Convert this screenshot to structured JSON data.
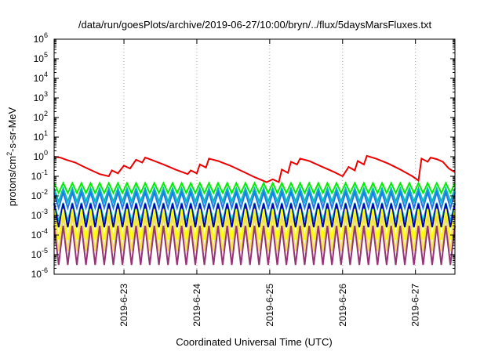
{
  "chart_data": {
    "type": "line",
    "title": "/data/run/goesPlots/archive/2019-06-27/10:00/bryn/../flux/5daysMarsFluxes.txt",
    "xlabel": "Coordinated Universal Time (UTC)",
    "ylabel": {
      "pre": "protons/cm",
      "sup": "2",
      "post": "-s-sr-MeV"
    },
    "x_scale": "time",
    "x_range": [
      "2019-06-22T01:00",
      "2019-06-27T13:00"
    ],
    "x_ticks": [
      "2019-6-23",
      "2019-6-24",
      "2019-6-25",
      "2019-6-26",
      "2019-6-27"
    ],
    "y_scale": "log",
    "y_range": [
      1e-06,
      1000000.0
    ],
    "y_ticks": [
      {
        "base": "10",
        "exp": "-6"
      },
      {
        "base": "10",
        "exp": "-5"
      },
      {
        "base": "10",
        "exp": "-4"
      },
      {
        "base": "10",
        "exp": "-3"
      },
      {
        "base": "10",
        "exp": "-2"
      },
      {
        "base": "10",
        "exp": "-1"
      },
      {
        "base": "10",
        "exp": "0"
      },
      {
        "base": "10",
        "exp": "1"
      },
      {
        "base": "10",
        "exp": "2"
      },
      {
        "base": "10",
        "exp": "3"
      },
      {
        "base": "10",
        "exp": "4"
      },
      {
        "base": "10",
        "exp": "5"
      },
      {
        "base": "10",
        "exp": "6"
      }
    ],
    "grid": "dotted vertical lines at x ticks",
    "legend": "none",
    "series": [
      {
        "color": "#ee0000",
        "values": [
          [
            "2019-06-22T01:00",
            1.0
          ],
          [
            "2019-06-22T03:00",
            0.9
          ],
          [
            "2019-06-22T05:00",
            0.7
          ],
          [
            "2019-06-22T08:00",
            0.5
          ],
          [
            "2019-06-22T10:00",
            0.35
          ],
          [
            "2019-06-22T12:00",
            0.25
          ],
          [
            "2019-06-22T14:00",
            0.18
          ],
          [
            "2019-06-22T16:00",
            0.13
          ],
          [
            "2019-06-22T19:00",
            0.1
          ],
          [
            "2019-06-22T20:00",
            0.2
          ],
          [
            "2019-06-22T22:00",
            0.14
          ],
          [
            "2019-06-23T00:00",
            0.35
          ],
          [
            "2019-06-23T02:00",
            0.25
          ],
          [
            "2019-06-23T04:00",
            0.7
          ],
          [
            "2019-06-23T06:00",
            0.5
          ],
          [
            "2019-06-23T07:00",
            0.9
          ],
          [
            "2019-06-23T09:00",
            0.7
          ],
          [
            "2019-06-23T13:00",
            0.4
          ],
          [
            "2019-06-23T17:00",
            0.22
          ],
          [
            "2019-06-23T21:00",
            0.13
          ],
          [
            "2019-06-23T22:00",
            0.2
          ],
          [
            "2019-06-24T00:00",
            0.14
          ],
          [
            "2019-06-24T01:00",
            0.4
          ],
          [
            "2019-06-24T03:00",
            0.28
          ],
          [
            "2019-06-24T04:00",
            0.8
          ],
          [
            "2019-06-24T07:00",
            0.6
          ],
          [
            "2019-06-24T11:00",
            0.35
          ],
          [
            "2019-06-24T15:00",
            0.18
          ],
          [
            "2019-06-24T19:00",
            0.09
          ],
          [
            "2019-06-24T23:00",
            0.05
          ],
          [
            "2019-06-25T01:00",
            0.07
          ],
          [
            "2019-06-25T03:00",
            0.05
          ],
          [
            "2019-06-25T04:00",
            0.22
          ],
          [
            "2019-06-25T06:00",
            0.15
          ],
          [
            "2019-06-25T07:00",
            0.55
          ],
          [
            "2019-06-25T09:00",
            0.4
          ],
          [
            "2019-06-25T10:00",
            0.8
          ],
          [
            "2019-06-25T13:00",
            0.6
          ],
          [
            "2019-06-25T17:00",
            0.32
          ],
          [
            "2019-06-25T21:00",
            0.17
          ],
          [
            "2019-06-26T00:00",
            0.1
          ],
          [
            "2019-06-26T02:00",
            0.3
          ],
          [
            "2019-06-26T04:00",
            0.2
          ],
          [
            "2019-06-26T05:00",
            0.6
          ],
          [
            "2019-06-26T07:00",
            0.4
          ],
          [
            "2019-06-26T08:00",
            1.1
          ],
          [
            "2019-06-26T11:00",
            0.8
          ],
          [
            "2019-06-26T15:00",
            0.45
          ],
          [
            "2019-06-26T19:00",
            0.22
          ],
          [
            "2019-06-26T23:00",
            0.1
          ],
          [
            "2019-06-27T01:00",
            0.06
          ],
          [
            "2019-06-27T02:00",
            0.8
          ],
          [
            "2019-06-27T04:00",
            0.55
          ],
          [
            "2019-06-27T05:00",
            0.9
          ],
          [
            "2019-06-27T07:00",
            0.75
          ],
          [
            "2019-06-27T09:00",
            0.55
          ],
          [
            "2019-06-27T11:00",
            0.25
          ],
          [
            "2019-06-27T13:00",
            0.16
          ]
        ]
      },
      {
        "color": "#00ee00",
        "base": 0.025,
        "amp": 1.8,
        "period_h": 3
      },
      {
        "color": "#00bbbb",
        "base": 0.011,
        "amp": 2.2,
        "period_h": 3
      },
      {
        "color": "#2277ee",
        "base": 0.006,
        "amp": 2.5,
        "period_h": 3
      },
      {
        "color": "#00bbbb",
        "base": 0.0015,
        "amp": 3.0,
        "period_h": 3
      },
      {
        "color": "#0000bb",
        "base": 0.001,
        "amp": 4.0,
        "period_h": 3
      },
      {
        "color": "#ffff00",
        "base": 0.00035,
        "amp": 6.0,
        "period_h": 3
      },
      {
        "color": "#f0e060",
        "base": 0.00012,
        "amp": 8.0,
        "period_h": 3
      },
      {
        "color": "#993377",
        "base": 3e-05,
        "amp": 10.0,
        "period_h": 3
      }
    ]
  }
}
